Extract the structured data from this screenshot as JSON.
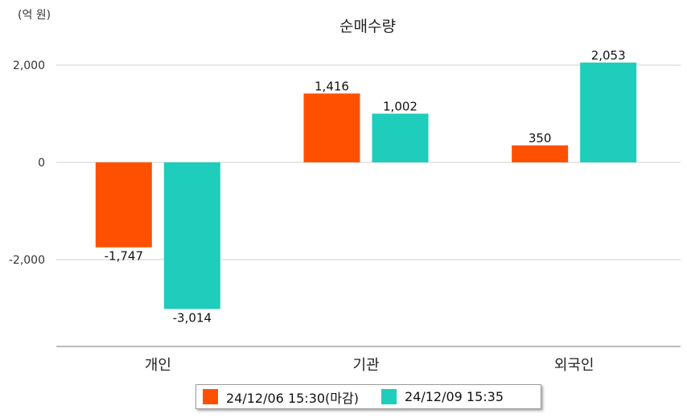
{
  "chart_data": {
    "type": "bar",
    "title": "순매수량",
    "unit_label": "(억 원)",
    "categories": [
      "개인",
      "기관",
      "외국인"
    ],
    "series": [
      {
        "name": "24/12/06 15:30(마감)",
        "color": "#ff5000",
        "values": [
          -1747,
          1416,
          350
        ],
        "labels": [
          "-1,747",
          "1,416",
          "350"
        ]
      },
      {
        "name": "24/12/09 15:35",
        "color": "#1ecdbb",
        "values": [
          -3014,
          1002,
          2053
        ],
        "labels": [
          "-3,014",
          "1,002",
          "2,053"
        ]
      }
    ],
    "y_ticks": [
      2000,
      0,
      -2000
    ],
    "y_tick_labels": [
      "2,000",
      "0",
      "-2,000"
    ],
    "ylim": [
      -3700,
      2200
    ],
    "grid": true,
    "legend_position": "bottom"
  }
}
